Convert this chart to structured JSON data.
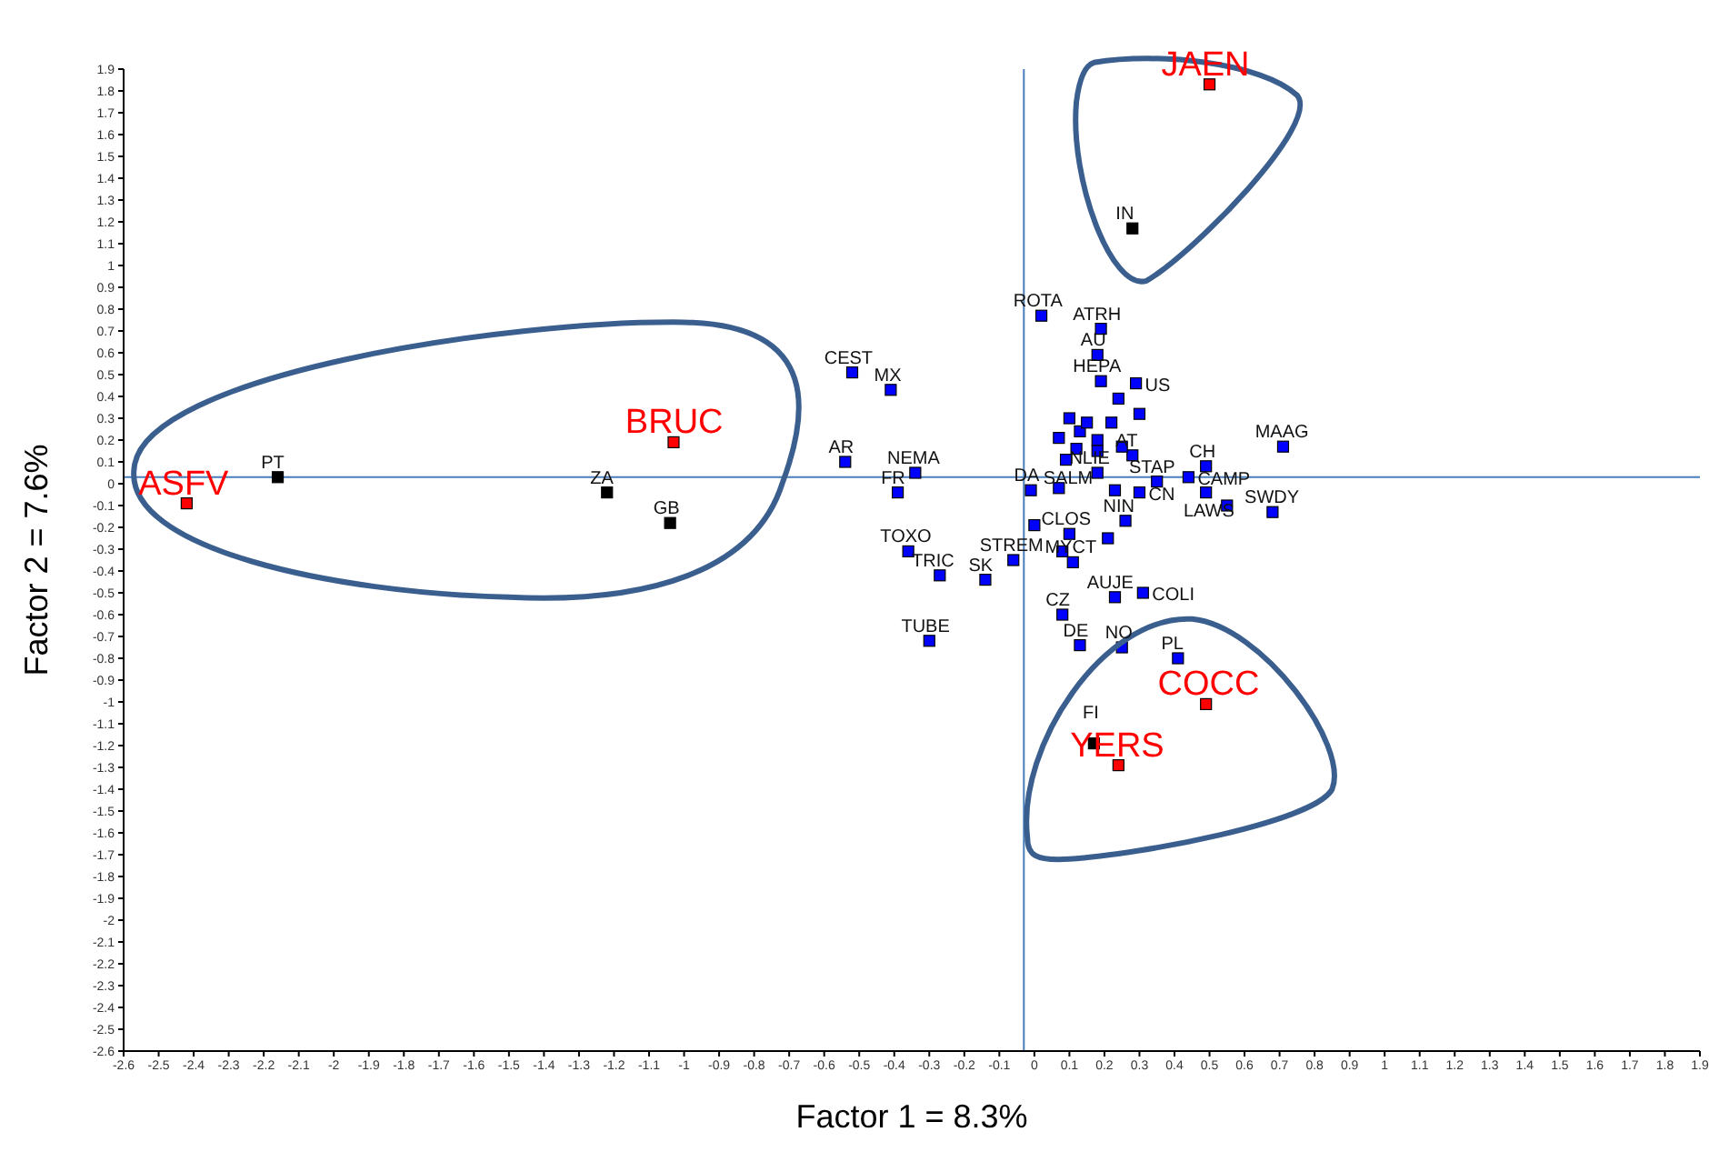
{
  "chart_data": {
    "type": "scatter",
    "xlabel": "Factor 1 = 8.3%",
    "ylabel": "Factor 2 = 7.6%",
    "xlim": [
      -2.6,
      1.9
    ],
    "ylim": [
      -2.6,
      1.9
    ],
    "xticks": [
      -2.6,
      -2.5,
      -2.4,
      -2.3,
      -2.2,
      -2.1,
      -2,
      -1.9,
      -1.8,
      -1.7,
      -1.6,
      -1.5,
      -1.4,
      -1.3,
      -1.2,
      -1.1,
      -1,
      -0.9,
      -0.8,
      -0.7,
      -0.6,
      -0.5,
      -0.4,
      -0.3,
      -0.2,
      -0.1,
      0,
      0.1,
      0.2,
      0.3,
      0.4,
      0.5,
      0.6,
      0.7,
      0.8,
      0.9,
      1,
      1.1,
      1.2,
      1.3,
      1.4,
      1.5,
      1.6,
      1.7,
      1.8,
      1.9
    ],
    "yticks": [
      -2.6,
      -2.5,
      -2.4,
      -2.3,
      -2.2,
      -2.1,
      -2,
      -1.9,
      -1.8,
      -1.7,
      -1.6,
      -1.5,
      -1.4,
      -1.3,
      -1.2,
      -1.1,
      -1,
      -0.9,
      -0.8,
      -0.7,
      -0.6,
      -0.5,
      -0.4,
      -0.3,
      -0.2,
      -0.1,
      0,
      0.1,
      0.2,
      0.3,
      0.4,
      0.5,
      0.6,
      0.7,
      0.8,
      0.9,
      1,
      1.1,
      1.2,
      1.3,
      1.4,
      1.5,
      1.6,
      1.7,
      1.8,
      1.9
    ],
    "grid": false,
    "marker": "square",
    "ref_lines": [
      {
        "axis": "x",
        "value": -0.03,
        "color": "#4a7ebb"
      },
      {
        "axis": "y",
        "value": 0.03,
        "color": "#4a7ebb"
      }
    ],
    "series": [
      {
        "color": "#ff0000",
        "x": [
          -2.42,
          -1.03,
          0.5,
          0.49,
          0.24
        ],
        "values": [
          -0.09,
          0.19,
          1.83,
          -1.01,
          -1.29
        ]
      },
      {
        "color": "#000000",
        "x": [
          -2.16,
          -1.22,
          -1.04,
          0.28,
          0.17
        ],
        "values": [
          0.03,
          -0.04,
          -0.18,
          1.17,
          -1.19
        ]
      },
      {
        "color": "#0000ff",
        "x": [
          -0.52,
          -0.41,
          -0.54,
          -0.34,
          -0.39,
          -0.36,
          -0.27,
          -0.14,
          -0.06,
          -0.3,
          0.02,
          0.19,
          0.18,
          0.19,
          0.29,
          0.24,
          0.3,
          0.71,
          0.49,
          0.44,
          0.49,
          0.55,
          0.68,
          0.35,
          0.28,
          0.25,
          0.18,
          0.09,
          -0.01,
          0.07,
          0.23,
          0.3,
          0.26,
          0.0,
          0.1,
          0.21,
          0.08,
          0.11,
          0.23,
          0.31,
          0.08,
          0.13,
          0.25,
          0.41,
          0.13,
          0.07,
          0.12,
          0.18,
          0.18,
          0.22,
          0.15,
          0.1
        ],
        "values": [
          0.51,
          0.43,
          0.1,
          0.05,
          -0.04,
          -0.31,
          -0.42,
          -0.44,
          -0.35,
          -0.72,
          0.77,
          0.71,
          0.59,
          0.47,
          0.46,
          0.39,
          0.32,
          0.17,
          0.08,
          0.03,
          -0.04,
          -0.1,
          -0.13,
          0.01,
          0.13,
          0.17,
          0.05,
          0.11,
          -0.03,
          -0.02,
          -0.03,
          -0.04,
          -0.17,
          -0.19,
          -0.23,
          -0.25,
          -0.31,
          -0.36,
          -0.52,
          -0.5,
          -0.6,
          -0.74,
          -0.75,
          -0.8,
          0.24,
          0.21,
          0.16,
          0.2,
          0.15,
          0.28,
          0.28,
          0.3
        ]
      }
    ],
    "annotations": [
      {
        "text": "ASFV",
        "x": -2.42,
        "y": -0.09
      },
      {
        "text": "BRUC",
        "x": -1.03,
        "y": 0.19
      },
      {
        "text": "JAEN",
        "x": 0.5,
        "y": 1.83
      },
      {
        "text": "COCC",
        "x": 0.49,
        "y": -1.01
      },
      {
        "text": "YERS",
        "x": 0.24,
        "y": -1.29
      },
      {
        "text": "PT",
        "x": -2.16,
        "y": 0.03
      },
      {
        "text": "ZA",
        "x": -1.22,
        "y": -0.04
      },
      {
        "text": "GB",
        "x": -1.04,
        "y": -0.18
      },
      {
        "text": "IN",
        "x": 0.28,
        "y": 1.17
      },
      {
        "text": "FI",
        "x": 0.17,
        "y": -1.19
      },
      {
        "text": "CEST",
        "x": -0.52,
        "y": 0.51
      },
      {
        "text": "MX",
        "x": -0.41,
        "y": 0.43
      },
      {
        "text": "AR",
        "x": -0.54,
        "y": 0.1
      },
      {
        "text": "NEMA",
        "x": -0.34,
        "y": 0.05
      },
      {
        "text": "FR",
        "x": -0.39,
        "y": -0.04
      },
      {
        "text": "TOXO",
        "x": -0.36,
        "y": -0.31
      },
      {
        "text": "TRIC",
        "x": -0.27,
        "y": -0.42
      },
      {
        "text": "SK",
        "x": -0.14,
        "y": -0.44
      },
      {
        "text": "STREM",
        "x": -0.06,
        "y": -0.35
      },
      {
        "text": "TUBE",
        "x": -0.3,
        "y": -0.72
      },
      {
        "text": "ROTA",
        "x": 0.02,
        "y": 0.77
      },
      {
        "text": "ATRH",
        "x": 0.19,
        "y": 0.71
      },
      {
        "text": "AU",
        "x": 0.18,
        "y": 0.59
      },
      {
        "text": "HEPA",
        "x": 0.19,
        "y": 0.47
      },
      {
        "text": "US",
        "x": 0.29,
        "y": 0.46
      },
      {
        "text": "MAAG",
        "x": 0.71,
        "y": 0.17
      },
      {
        "text": "CH",
        "x": 0.49,
        "y": 0.08
      },
      {
        "text": "CAMP",
        "x": 0.44,
        "y": 0.03
      },
      {
        "text": "LAWS",
        "x": 0.49,
        "y": -0.04
      },
      {
        "text": "SWDY",
        "x": 0.68,
        "y": -0.13
      },
      {
        "text": "STAP",
        "x": 0.35,
        "y": 0.01
      },
      {
        "text": "AT",
        "x": 0.28,
        "y": 0.13
      },
      {
        "text": "NLIE",
        "x": 0.18,
        "y": 0.05
      },
      {
        "text": "SALM",
        "x": 0.09,
        "y": 0.11
      },
      {
        "text": "DA",
        "x": -0.01,
        "y": -0.03
      },
      {
        "text": "CN",
        "x": 0.3,
        "y": -0.04
      },
      {
        "text": "NIN",
        "x": 0.26,
        "y": -0.17
      },
      {
        "text": "CLOS",
        "x": 0.1,
        "y": -0.23
      },
      {
        "text": "MYCT",
        "x": 0.11,
        "y": -0.36
      },
      {
        "text": "AUJE",
        "x": 0.23,
        "y": -0.52
      },
      {
        "text": "COLI",
        "x": 0.31,
        "y": -0.5
      },
      {
        "text": "CZ",
        "x": 0.08,
        "y": -0.6
      },
      {
        "text": "DE",
        "x": 0.13,
        "y": -0.74
      },
      {
        "text": "NO",
        "x": 0.25,
        "y": -0.75
      },
      {
        "text": "PL",
        "x": 0.41,
        "y": -0.8
      }
    ]
  }
}
